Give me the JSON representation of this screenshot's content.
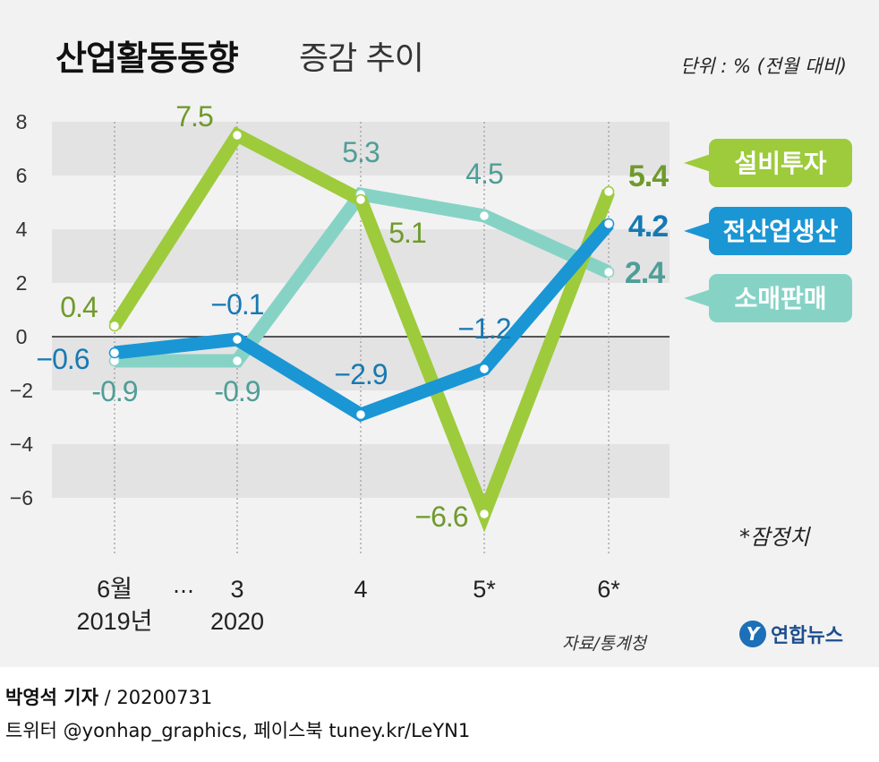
{
  "header": {
    "title": "산업활동동향",
    "subtitle": "증감 추이",
    "unit": "단위 : % (전월 대비)"
  },
  "colors": {
    "equipment": "#9dcb3c",
    "equipment_text": "#6f9a2c",
    "industrial": "#1a96d4",
    "industrial_text": "#1679b3",
    "retail": "#86d3c6",
    "retail_text": "#4f9e97",
    "band": "#e3e3e3"
  },
  "note": "*잠정치",
  "source": "자료/통계청",
  "logo_text": "연합뉴스",
  "logo_mark": "Y",
  "footer": {
    "author": "박영석 기자",
    "date": "/  20200731",
    "social": "트위터 @yonhap_graphics, 페이스북 tuney.kr/LeYN1"
  },
  "chart_data": {
    "type": "line",
    "categories": [
      "6월 2019년",
      "3 2020",
      "4",
      "5*",
      "6*"
    ],
    "x_tick_labels": [
      [
        "6월",
        "2019년"
      ],
      [
        "3",
        "2020"
      ],
      [
        "4"
      ],
      [
        "5*"
      ],
      [
        "6*"
      ]
    ],
    "break_marker": "…",
    "ylim": [
      -8,
      8
    ],
    "yticks": [
      8,
      6,
      4,
      2,
      0,
      -2,
      -4,
      -6
    ],
    "ytick_labels": [
      "8",
      "6",
      "4",
      "2",
      "0",
      "−2",
      "−4",
      "−6"
    ],
    "grid": "alternating horizontal bands",
    "series": [
      {
        "key": "retail",
        "name": "소매판매",
        "values": [
          -0.9,
          -0.9,
          5.3,
          4.5,
          2.4
        ],
        "labels": [
          "-0.9",
          "-0.9",
          "5.3",
          "4.5",
          "2.4"
        ]
      },
      {
        "key": "equipment",
        "name": "설비투자",
        "values": [
          0.4,
          7.5,
          5.1,
          -6.6,
          5.4
        ],
        "labels": [
          "0.4",
          "7.5",
          "5.1",
          "−6.6",
          "5.4"
        ]
      },
      {
        "key": "industrial",
        "name": "전산업생산",
        "values": [
          -0.6,
          -0.1,
          -2.9,
          -1.2,
          4.2
        ],
        "labels": [
          "−0.6",
          "−0.1",
          "−2.9",
          "−1.2",
          "4.2"
        ]
      }
    ]
  }
}
